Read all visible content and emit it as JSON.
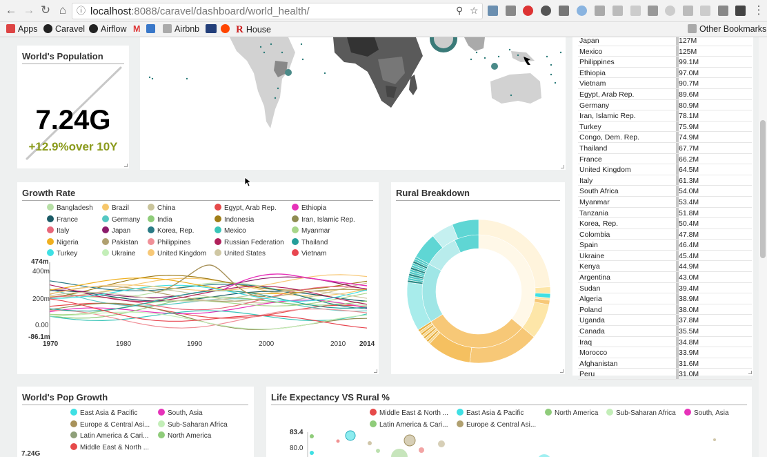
{
  "browser": {
    "url_host": "localhost",
    "url_path": ":8088/caravel/dashboard/world_health/",
    "bookmarks": [
      "Apps",
      "Caravel",
      "Airflow",
      "Airbnb",
      "House"
    ],
    "other_bookmarks": "Other Bookmarks"
  },
  "population": {
    "title": "World's Population",
    "value": "7.24G",
    "change": "+12.9%over 10Y"
  },
  "growth": {
    "title": "Growth Rate",
    "legend": [
      {
        "name": "Bangladesh",
        "color": "#b7e0a6"
      },
      {
        "name": "Brazil",
        "color": "#f7c76a"
      },
      {
        "name": "China",
        "color": "#c9c49b"
      },
      {
        "name": "Egypt, Arab Rep.",
        "color": "#e64a4a"
      },
      {
        "name": "Ethiopia",
        "color": "#e632b9"
      },
      {
        "name": "France",
        "color": "#1b5b66"
      },
      {
        "name": "Germany",
        "color": "#55c8c3"
      },
      {
        "name": "India",
        "color": "#8fcc7a"
      },
      {
        "name": "Indonesia",
        "color": "#a07d18"
      },
      {
        "name": "Iran, Islamic Rep.",
        "color": "#8f8c52"
      },
      {
        "name": "Italy",
        "color": "#e8677a"
      },
      {
        "name": "Japan",
        "color": "#8b1c6b"
      },
      {
        "name": "Korea, Rep.",
        "color": "#2a7a85"
      },
      {
        "name": "Mexico",
        "color": "#3ac5b8"
      },
      {
        "name": "Myanmar",
        "color": "#a8d68a"
      },
      {
        "name": "Nigeria",
        "color": "#f0b020"
      },
      {
        "name": "Pakistan",
        "color": "#b0a070"
      },
      {
        "name": "Philippines",
        "color": "#f09098"
      },
      {
        "name": "Russian Federation",
        "color": "#b0205a"
      },
      {
        "name": "Thailand",
        "color": "#259e9a"
      },
      {
        "name": "Turkey",
        "color": "#3fe0e4"
      },
      {
        "name": "Ukraine",
        "color": "#c3eeb8"
      },
      {
        "name": "United Kingdom",
        "color": "#f7c877"
      },
      {
        "name": "United States",
        "color": "#cfc7a3"
      },
      {
        "name": "Vietnam",
        "color": "#e84650"
      }
    ],
    "y_ticks": [
      "474m",
      "400m",
      "200m",
      "0.00",
      "-86.1m"
    ],
    "x_ticks": [
      "1970",
      "1980",
      "1990",
      "2000",
      "2010",
      "2014"
    ]
  },
  "rural": {
    "title": "Rural Breakdown"
  },
  "table": {
    "rows": [
      {
        "name": "Japan",
        "value": "127M"
      },
      {
        "name": "Mexico",
        "value": "125M"
      },
      {
        "name": "Philippines",
        "value": "99.1M"
      },
      {
        "name": "Ethiopia",
        "value": "97.0M"
      },
      {
        "name": "Vietnam",
        "value": "90.7M"
      },
      {
        "name": "Egypt, Arab Rep.",
        "value": "89.6M"
      },
      {
        "name": "Germany",
        "value": "80.9M"
      },
      {
        "name": "Iran, Islamic Rep.",
        "value": "78.1M"
      },
      {
        "name": "Turkey",
        "value": "75.9M"
      },
      {
        "name": "Congo, Dem. Rep.",
        "value": "74.9M"
      },
      {
        "name": "Thailand",
        "value": "67.7M"
      },
      {
        "name": "France",
        "value": "66.2M"
      },
      {
        "name": "United Kingdom",
        "value": "64.5M"
      },
      {
        "name": "Italy",
        "value": "61.3M"
      },
      {
        "name": "South Africa",
        "value": "54.0M"
      },
      {
        "name": "Myanmar",
        "value": "53.4M"
      },
      {
        "name": "Tanzania",
        "value": "51.8M"
      },
      {
        "name": "Korea, Rep.",
        "value": "50.4M"
      },
      {
        "name": "Colombia",
        "value": "47.8M"
      },
      {
        "name": "Spain",
        "value": "46.4M"
      },
      {
        "name": "Ukraine",
        "value": "45.4M"
      },
      {
        "name": "Kenya",
        "value": "44.9M"
      },
      {
        "name": "Argentina",
        "value": "43.0M"
      },
      {
        "name": "Sudan",
        "value": "39.4M"
      },
      {
        "name": "Algeria",
        "value": "38.9M"
      },
      {
        "name": "Poland",
        "value": "38.0M"
      },
      {
        "name": "Uganda",
        "value": "37.8M"
      },
      {
        "name": "Canada",
        "value": "35.5M"
      },
      {
        "name": "Iraq",
        "value": "34.8M"
      },
      {
        "name": "Morocco",
        "value": "33.9M"
      },
      {
        "name": "Afghanistan",
        "value": "31.6M"
      },
      {
        "name": "Peru",
        "value": "31.0M"
      }
    ]
  },
  "popgrowth": {
    "title": "World's Pop Growth",
    "legend": [
      {
        "name": "East Asia & Pacific",
        "color": "#3fe0e4"
      },
      {
        "name": "South, Asia",
        "color": "#e632b9"
      },
      {
        "name": "Europe & Central Asi...",
        "color": "#a8925a"
      },
      {
        "name": "Sub-Saharan Africa",
        "color": "#c3eeb8"
      },
      {
        "name": "Latin America & Cari...",
        "color": "#8fa07a"
      },
      {
        "name": "North America",
        "color": "#8fcc7a"
      },
      {
        "name": "Middle East & North ...",
        "color": "#e64a4a"
      }
    ],
    "y_tick": "7.24G"
  },
  "lifeexp": {
    "title": "Life Expectancy VS Rural %",
    "legend": [
      {
        "name": "Middle East & North ...",
        "color": "#e64a4a"
      },
      {
        "name": "East Asia & Pacific",
        "color": "#3fe0e4"
      },
      {
        "name": "North America",
        "color": "#8fcc7a"
      },
      {
        "name": "Sub-Saharan Africa",
        "color": "#c3eeb8"
      },
      {
        "name": "South, Asia",
        "color": "#e632b9"
      },
      {
        "name": "Latin America & Cari...",
        "color": "#8fcc7a"
      },
      {
        "name": "Europe & Central Asi...",
        "color": "#b0a070"
      }
    ],
    "y_ticks": [
      "83.4",
      "80.0"
    ]
  }
}
